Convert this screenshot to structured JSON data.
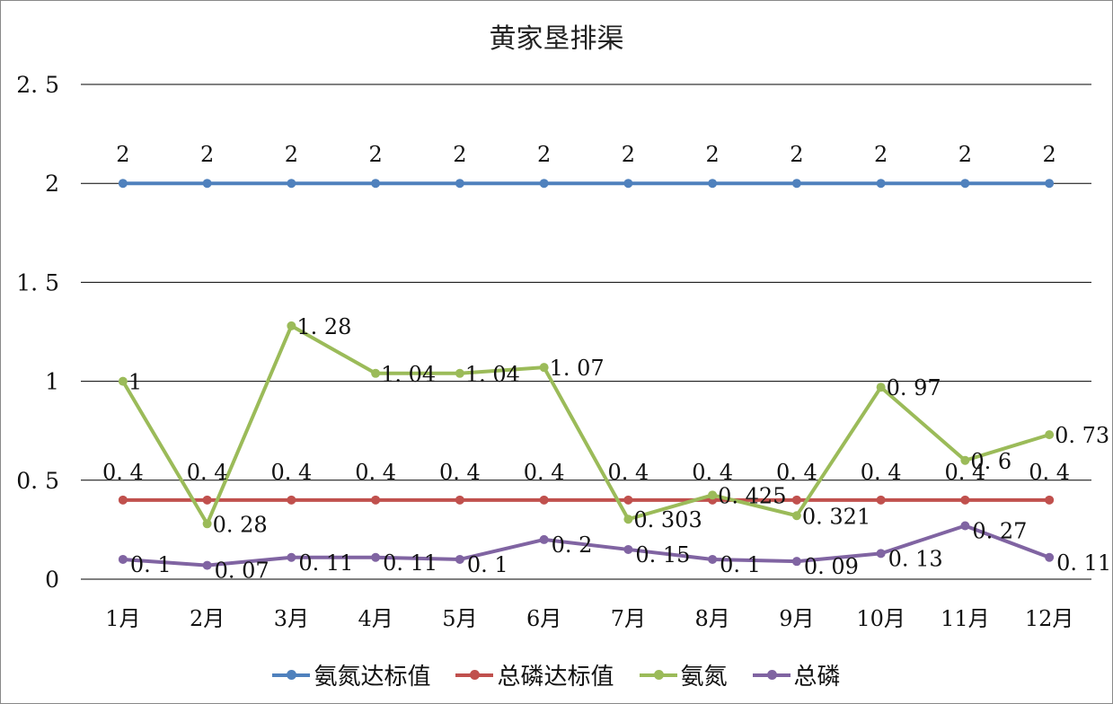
{
  "chart_data": {
    "type": "line",
    "title": "黄家垦排渠",
    "categories": [
      "1月",
      "2月",
      "3月",
      "4月",
      "5月",
      "6月",
      "7月",
      "8月",
      "9月",
      "10月",
      "11月",
      "12月"
    ],
    "ylim": [
      0,
      2.5
    ],
    "yticks": [
      0,
      0.5,
      1,
      1.5,
      2,
      2.5
    ],
    "grid": true,
    "legend": "bottom",
    "data_labels": true,
    "series": [
      {
        "name": "氨氮达标值",
        "color": "#4F81BD",
        "values": [
          2,
          2,
          2,
          2,
          2,
          2,
          2,
          2,
          2,
          2,
          2,
          2
        ]
      },
      {
        "name": "总磷达标值",
        "color": "#C0504D",
        "values": [
          0.4,
          0.4,
          0.4,
          0.4,
          0.4,
          0.4,
          0.4,
          0.4,
          0.4,
          0.4,
          0.4,
          0.4
        ]
      },
      {
        "name": "氨氮",
        "color": "#9BBB59",
        "values": [
          1,
          0.28,
          1.28,
          1.04,
          1.04,
          1.07,
          0.303,
          0.425,
          0.321,
          0.97,
          0.6,
          0.73
        ]
      },
      {
        "name": "总磷",
        "color": "#8064A2",
        "values": [
          0.1,
          0.07,
          0.11,
          0.11,
          0.1,
          0.2,
          0.15,
          0.1,
          0.09,
          0.13,
          0.27,
          0.11
        ]
      }
    ]
  }
}
